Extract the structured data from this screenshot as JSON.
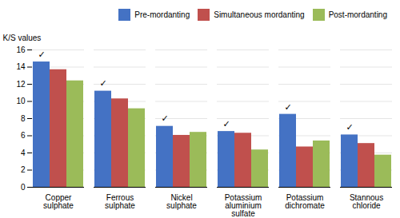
{
  "chart_data": {
    "type": "bar",
    "categories": [
      "Copper\nsulphate",
      "Ferrous\nsulphate",
      "Nickel\nsulphate",
      "Potassium\naluminium\nsulfate",
      "Potassium\ndichromate",
      "Stannous\nchloride"
    ],
    "series": [
      {
        "name": "Pre-mordanting",
        "color": "#4472c4",
        "values": [
          14.6,
          11.2,
          7.1,
          6.5,
          8.5,
          6.1
        ]
      },
      {
        "name": "Simultaneous mordanting",
        "color": "#c0504d",
        "values": [
          13.7,
          10.3,
          6.05,
          6.3,
          4.7,
          5.1
        ]
      },
      {
        "name": "Post-mordanting",
        "color": "#9bbb59",
        "values": [
          12.4,
          9.15,
          6.4,
          4.35,
          5.4,
          3.75
        ]
      }
    ],
    "annotations": [
      {
        "text": "✓",
        "x": "Copper\nsulphate",
        "series": "Pre-mordanting",
        "y": 15.05
      },
      {
        "text": "✓",
        "x": "Ferrous\nsulphate",
        "series": "Pre-mordanting",
        "y": 11.65
      },
      {
        "text": "✓",
        "x": "Nickel\nsulphate",
        "series": "Pre-mordanting",
        "y": 7.55
      },
      {
        "text": "✓",
        "x": "Potassium\naluminium\nsulfate",
        "series": "Pre-mordanting",
        "y": 6.95
      },
      {
        "text": "✓",
        "x": "Potassium\ndichromate",
        "series": "Pre-mordanting",
        "y": 8.9
      },
      {
        "text": "✓",
        "x": "Stannous\nchloride",
        "series": "Pre-mordanting",
        "y": 6.55
      }
    ],
    "ylabel": "K/S values",
    "ylim": [
      0,
      16
    ],
    "yticks": [
      0,
      2,
      4,
      6,
      8,
      10,
      12,
      14,
      16
    ],
    "grid": true,
    "legend": "upper right"
  }
}
